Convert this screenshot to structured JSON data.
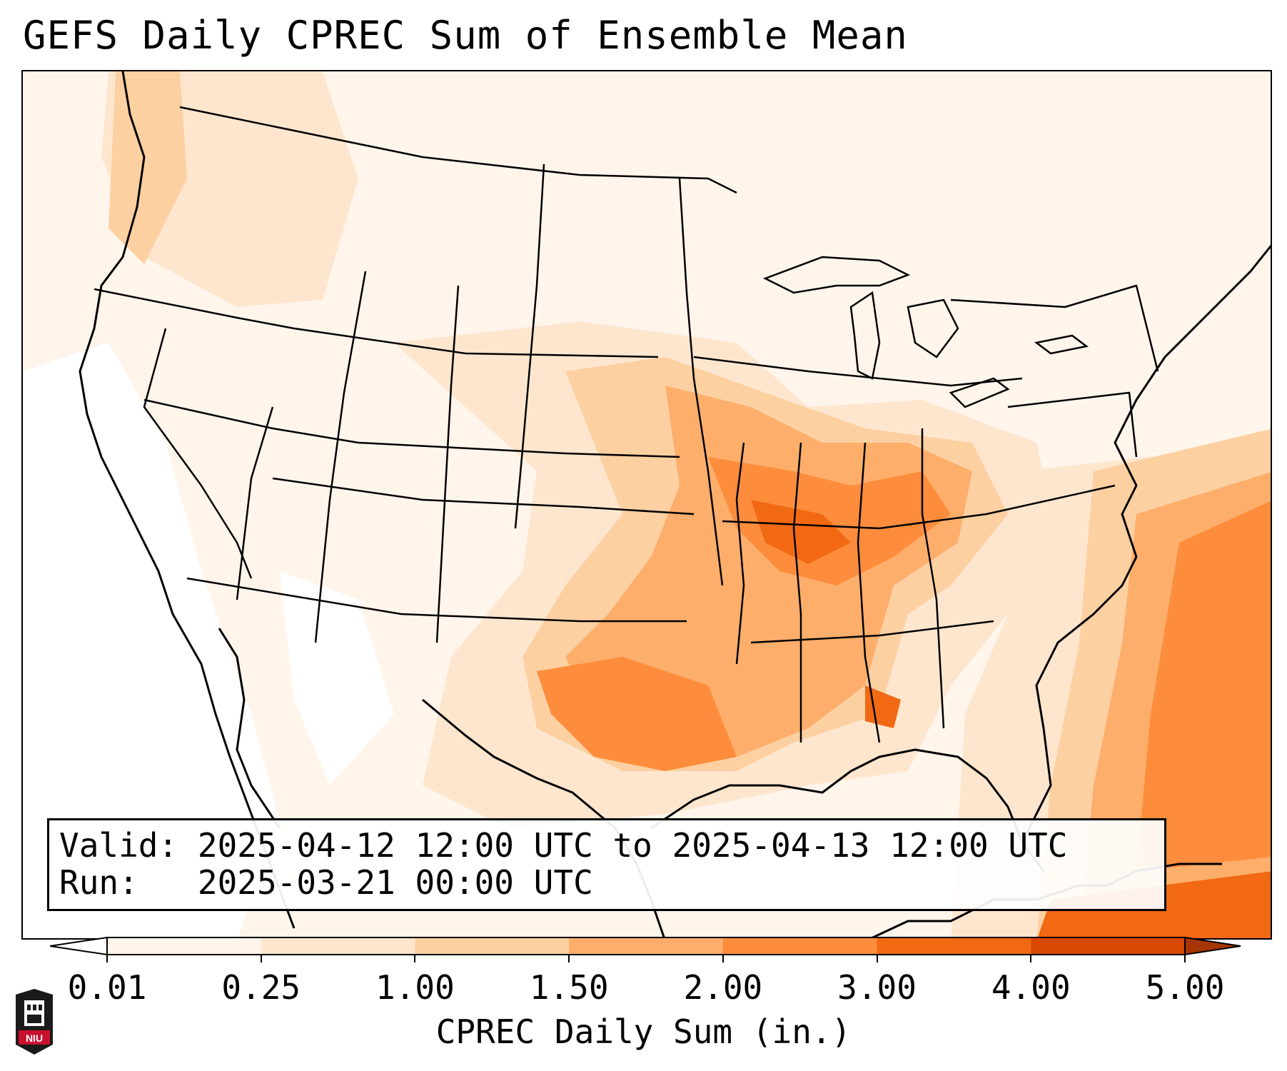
{
  "title": "GEFS Daily CPREC Sum of Ensemble Mean",
  "valid_label": "Valid:",
  "valid_value": "2025-04-12 12:00 UTC to 2025-04-13 12:00 UTC",
  "run_label": "Run:",
  "run_value": "2025-03-21 00:00 UTC",
  "colorbar": {
    "label": "CPREC Daily Sum (in.)",
    "ticks": [
      "0.01",
      "0.25",
      "1.00",
      "1.50",
      "2.00",
      "3.00",
      "4.00",
      "5.00"
    ],
    "colors": [
      "#fff5eb",
      "#fee6ce",
      "#fdd0a2",
      "#fdae6b",
      "#fd8d3c",
      "#f16913",
      "#d94801",
      "#a63603"
    ],
    "extend": "both"
  },
  "logo": {
    "text": "NIU",
    "icon": "university-tower-icon"
  },
  "map_data": {
    "region": "Contiguous United States",
    "projection": "lambert-conformal",
    "field": "Daily convective precipitation sum, ensemble mean (in.)",
    "features": [
      "state-boundaries",
      "coastlines",
      "great-lakes",
      "country-borders"
    ],
    "heaviest_area_description_colors": {
      "mid-mississippi-ohio-valley": "#f16913",
      "southern-plains": "#fd8d3c",
      "western-atlantic": "#fd8d3c",
      "pacific-northwest-coast": "#fdae6b"
    }
  }
}
